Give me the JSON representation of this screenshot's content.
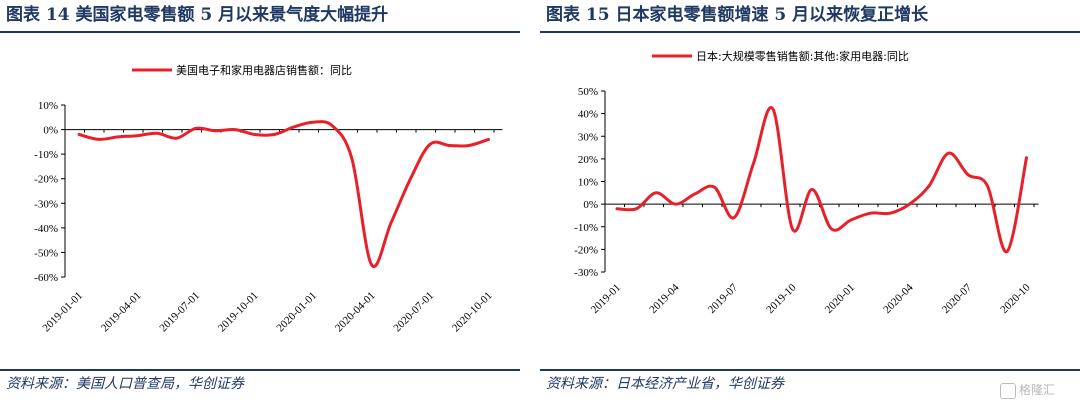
{
  "left": {
    "title": "图表 14   美国家电零售额 5 月以来景气度大幅提升",
    "source": "资料来源：美国人口普查局，华创证券"
  },
  "right": {
    "title": "图表 15   日本家电零售额增速 5 月以来恢复正增长",
    "source": "资料来源：日本经济产业省，华创证券"
  },
  "watermark": {
    "text": "格隆汇"
  },
  "chart_data": [
    {
      "type": "line",
      "series": [
        {
          "name": "美国电子和家用电器店销售额：同比",
          "color": "#e8202a",
          "x": [
            "2019-01",
            "2019-02",
            "2019-03",
            "2019-04",
            "2019-05",
            "2019-06",
            "2019-07",
            "2019-08",
            "2019-09",
            "2019-10",
            "2019-11",
            "2019-12",
            "2020-01",
            "2020-02",
            "2020-03",
            "2020-04",
            "2020-05",
            "2020-06",
            "2020-07",
            "2020-08",
            "2020-09",
            "2020-10"
          ],
          "values": [
            -2,
            -4,
            -3,
            -2.5,
            -1.5,
            -3.5,
            0.5,
            -0.5,
            0,
            -2,
            -2,
            1,
            3,
            1.5,
            -12,
            -55,
            -38,
            -20,
            -6,
            -6.5,
            -6.5,
            -4
          ]
        }
      ],
      "xticks": [
        "2019-01-01",
        "2019-04-01",
        "2019-07-01",
        "2019-10-01",
        "2020-01-01",
        "2020-04-01",
        "2020-07-01",
        "2020-10-01"
      ],
      "yticks": [
        "10%",
        "0%",
        "-10%",
        "-20%",
        "-30%",
        "-40%",
        "-50%",
        "-60%"
      ],
      "ylim": [
        -60,
        10
      ],
      "legend_position": "top-center",
      "grid": false
    },
    {
      "type": "line",
      "series": [
        {
          "name": "日本:大规模零售销售额:其他:家用电器:同比",
          "color": "#e8202a",
          "x": [
            "2019-01",
            "2019-02",
            "2019-03",
            "2019-04",
            "2019-05",
            "2019-06",
            "2019-07",
            "2019-08",
            "2019-09",
            "2019-10",
            "2019-11",
            "2019-12",
            "2020-01",
            "2020-02",
            "2020-03",
            "2020-04",
            "2020-05",
            "2020-06",
            "2020-07",
            "2020-08",
            "2020-09",
            "2020-10"
          ],
          "values": [
            -2,
            -2,
            5,
            0,
            4.5,
            7.5,
            -6,
            18,
            42,
            -11,
            6.5,
            -11,
            -7,
            -4,
            -4,
            0,
            8,
            22.5,
            13,
            8,
            -21,
            20.5
          ]
        }
      ],
      "xticks": [
        "2019-01",
        "2019-04",
        "2019-07",
        "2019-10",
        "2020-01",
        "2020-04",
        "2020-07",
        "2020-10"
      ],
      "yticks": [
        "50%",
        "40%",
        "30%",
        "20%",
        "10%",
        "0%",
        "-10%",
        "-20%",
        "-30%"
      ],
      "ylim": [
        -30,
        50
      ],
      "legend_position": "top-center",
      "grid": false
    }
  ]
}
